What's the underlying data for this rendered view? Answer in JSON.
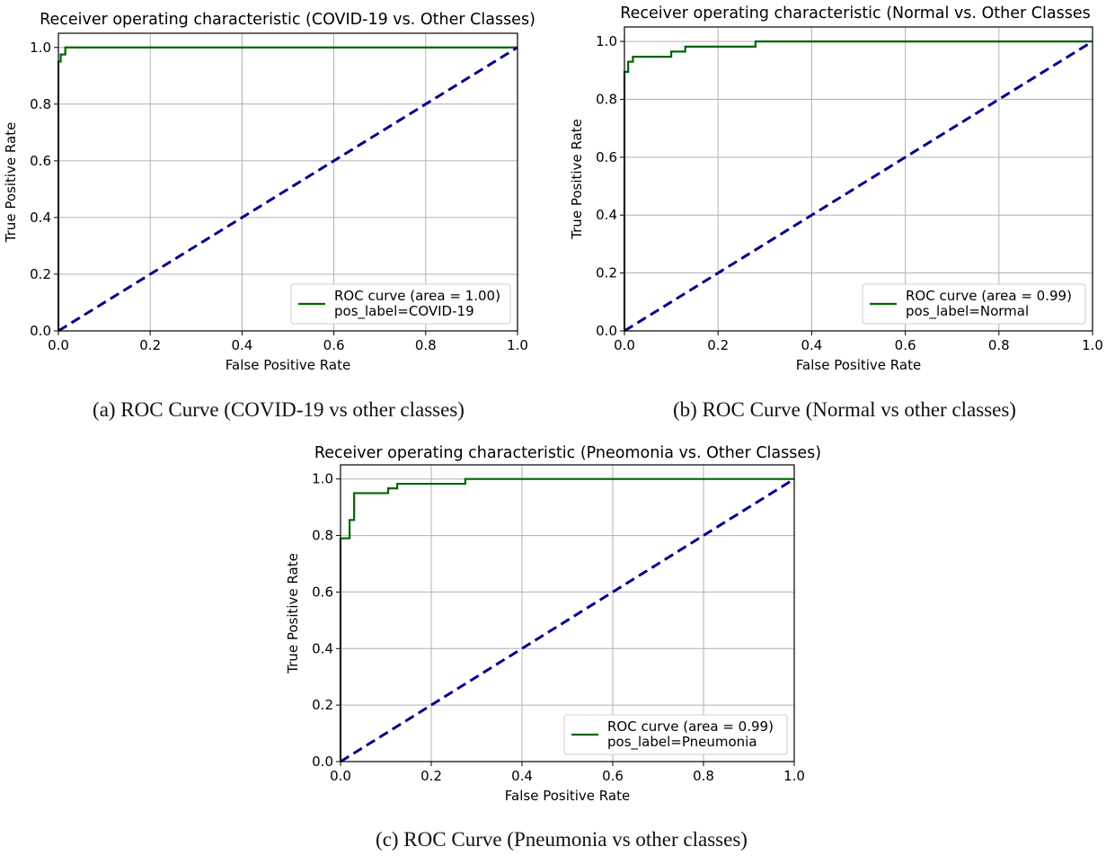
{
  "colors": {
    "roc": "#006400",
    "chance": "#00008b",
    "grid": "#b0b0b0"
  },
  "captions": {
    "a": "(a) ROC Curve (COVID-19 vs other classes)",
    "b": "(b) ROC Curve (Normal vs other classes)",
    "c": "(c) ROC Curve (Pneumonia vs other classes)"
  },
  "chart_data": [
    {
      "type": "line",
      "title": "Receiver operating characteristic (COVID-19 vs. Other Classes)",
      "xlabel": "False Positive Rate",
      "ylabel": "True Positive Rate",
      "xlim": [
        0,
        1
      ],
      "ylim": [
        0,
        1.05
      ],
      "xticks": [
        "0.0",
        "0.2",
        "0.4",
        "0.6",
        "0.8",
        "1.0"
      ],
      "yticks": [
        "0.0",
        "0.2",
        "0.4",
        "0.6",
        "0.8",
        "1.0"
      ],
      "grid": true,
      "legend_position": "lower-right",
      "legend": [
        "ROC curve (area = 1.00)",
        "pos_label=COVID-19"
      ],
      "series": [
        {
          "role": "roc",
          "x": [
            0,
            0,
            0.005,
            0.005,
            0.015,
            0.015,
            1.0
          ],
          "y": [
            0,
            0.95,
            0.95,
            0.975,
            0.975,
            1.0,
            1.0
          ]
        },
        {
          "role": "chance",
          "x": [
            0,
            1
          ],
          "y": [
            0,
            1
          ]
        }
      ]
    },
    {
      "type": "line",
      "title": "Receiver operating characteristic (Normal vs. Other Classes",
      "xlabel": "False Positive Rate",
      "ylabel": "True Positive Rate",
      "xlim": [
        0,
        1
      ],
      "ylim": [
        0,
        1.05
      ],
      "xticks": [
        "0.0",
        "0.2",
        "0.4",
        "0.6",
        "0.8",
        "1.0"
      ],
      "yticks": [
        "0.0",
        "0.2",
        "0.4",
        "0.6",
        "0.8",
        "1.0"
      ],
      "grid": true,
      "legend_position": "lower-right",
      "legend": [
        "ROC curve (area = 0.99)",
        "pos_label=Normal"
      ],
      "series": [
        {
          "role": "roc",
          "x": [
            0,
            0,
            0.008,
            0.008,
            0.018,
            0.018,
            0.1,
            0.1,
            0.13,
            0.13,
            0.28,
            0.28,
            1.0
          ],
          "y": [
            0,
            0.895,
            0.895,
            0.93,
            0.93,
            0.947,
            0.947,
            0.965,
            0.965,
            0.982,
            0.982,
            1.0,
            1.0
          ]
        },
        {
          "role": "chance",
          "x": [
            0,
            1
          ],
          "y": [
            0,
            1
          ]
        }
      ]
    },
    {
      "type": "line",
      "title": "Receiver operating characteristic (Pneomonia vs. Other Classes)",
      "xlabel": "False Positive Rate",
      "ylabel": "True Positive Rate",
      "xlim": [
        0,
        1
      ],
      "ylim": [
        0,
        1.05
      ],
      "xticks": [
        "0.0",
        "0.2",
        "0.4",
        "0.6",
        "0.8",
        "1.0"
      ],
      "yticks": [
        "0.0",
        "0.2",
        "0.4",
        "0.6",
        "0.8",
        "1.0"
      ],
      "grid": true,
      "legend_position": "lower-right",
      "legend": [
        "ROC curve (area = 0.99)",
        "pos_label=Pneumonia"
      ],
      "series": [
        {
          "role": "roc",
          "x": [
            0,
            0,
            0.02,
            0.02,
            0.03,
            0.03,
            0.105,
            0.105,
            0.125,
            0.125,
            0.275,
            0.275,
            1.0
          ],
          "y": [
            0,
            0.79,
            0.79,
            0.855,
            0.855,
            0.95,
            0.95,
            0.967,
            0.967,
            0.983,
            0.983,
            1.0,
            1.0
          ]
        },
        {
          "role": "chance",
          "x": [
            0,
            1
          ],
          "y": [
            0,
            1
          ]
        }
      ]
    }
  ]
}
